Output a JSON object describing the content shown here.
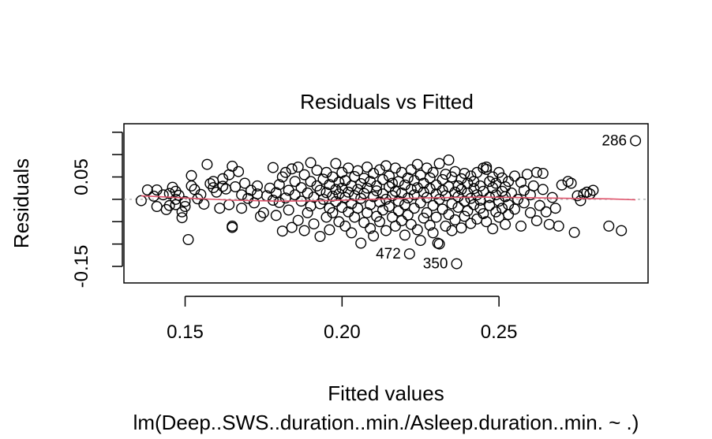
{
  "chart_data": {
    "type": "scatter",
    "title": "Residuals vs Fitted",
    "xlabel": "Fitted values",
    "ylabel": "Residuals",
    "caption": "lm(Deep..SWS..duration..min./Asleep.duration..min. ~ .)",
    "xlim": [
      0.1305,
      0.2975
    ],
    "ylim": [
      -0.187,
      0.169
    ],
    "x_ticks": [
      {
        "value": 0.15,
        "label": "0.15"
      },
      {
        "value": 0.2,
        "label": "0.20"
      },
      {
        "value": 0.25,
        "label": "0.25"
      }
    ],
    "y_ticks": [
      {
        "value": -0.15,
        "label": "-0.15"
      },
      {
        "value": -0.1,
        "label": ""
      },
      {
        "value": -0.05,
        "label": ""
      },
      {
        "value": 0.0,
        "label": ""
      },
      {
        "value": 0.05,
        "label": "0.05"
      },
      {
        "value": 0.1,
        "label": ""
      },
      {
        "value": 0.15,
        "label": ""
      }
    ],
    "reference_line": 0,
    "smooth_color": "#DF536B",
    "reference_color": "#aaaaaa",
    "labeled_points": [
      {
        "label": "286",
        "x": 0.2935,
        "y": 0.131
      },
      {
        "label": "472",
        "x": 0.2215,
        "y": -0.122
      },
      {
        "label": "350",
        "x": 0.2365,
        "y": -0.144
      }
    ],
    "smooth": [
      {
        "x": 0.136,
        "y": 0.008
      },
      {
        "x": 0.15,
        "y": 0.003
      },
      {
        "x": 0.165,
        "y": -0.002
      },
      {
        "x": 0.18,
        "y": -0.004
      },
      {
        "x": 0.195,
        "y": -0.003
      },
      {
        "x": 0.205,
        "y": -0.001
      },
      {
        "x": 0.215,
        "y": 0.001
      },
      {
        "x": 0.225,
        "y": 0.003
      },
      {
        "x": 0.235,
        "y": 0.004
      },
      {
        "x": 0.245,
        "y": 0.005
      },
      {
        "x": 0.255,
        "y": 0.004
      },
      {
        "x": 0.265,
        "y": 0.003
      },
      {
        "x": 0.275,
        "y": 0.002
      },
      {
        "x": 0.285,
        "y": 0.001
      },
      {
        "x": 0.2935,
        "y": -0.001
      }
    ],
    "points": [
      [
        0.136,
        -0.003
      ],
      [
        0.138,
        0.021
      ],
      [
        0.14,
        0.007
      ],
      [
        0.141,
        -0.016
      ],
      [
        0.141,
        0.021
      ],
      [
        0.143,
        0.01
      ],
      [
        0.144,
        -0.023
      ],
      [
        0.145,
        -0.014
      ],
      [
        0.145,
        0.013
      ],
      [
        0.146,
        0.027
      ],
      [
        0.147,
        0.0
      ],
      [
        0.147,
        -0.012
      ],
      [
        0.147,
        0.018
      ],
      [
        0.148,
        0.009
      ],
      [
        0.149,
        -0.028
      ],
      [
        0.149,
        -0.041
      ],
      [
        0.15,
        -0.005
      ],
      [
        0.15,
        -0.016
      ],
      [
        0.151,
        -0.09
      ],
      [
        0.152,
        0.053
      ],
      [
        0.152,
        0.03
      ],
      [
        0.153,
        0.022
      ],
      [
        0.154,
        0.001
      ],
      [
        0.155,
        0.011
      ],
      [
        0.156,
        -0.011
      ],
      [
        0.157,
        0.078
      ],
      [
        0.158,
        0.035
      ],
      [
        0.159,
        0.04
      ],
      [
        0.159,
        0.026
      ],
      [
        0.16,
        0.016
      ],
      [
        0.161,
        -0.02
      ],
      [
        0.162,
        0.046
      ],
      [
        0.162,
        0.029
      ],
      [
        0.163,
        0.023
      ],
      [
        0.164,
        -0.012
      ],
      [
        0.164,
        0.055
      ],
      [
        0.165,
        0.074
      ],
      [
        0.165,
        -0.06
      ],
      [
        0.165,
        -0.063
      ],
      [
        0.166,
        0.028
      ],
      [
        0.167,
        0.062
      ],
      [
        0.168,
        0.01
      ],
      [
        0.168,
        -0.02
      ],
      [
        0.169,
        0.036
      ],
      [
        0.17,
        0.002
      ],
      [
        0.171,
        0.02
      ],
      [
        0.172,
        -0.008
      ],
      [
        0.173,
        0.012
      ],
      [
        0.173,
        0.03
      ],
      [
        0.174,
        -0.038
      ],
      [
        0.175,
        -0.03
      ],
      [
        0.176,
        0.008
      ],
      [
        0.177,
        0.025
      ],
      [
        0.178,
        -0.002
      ],
      [
        0.178,
        0.071
      ],
      [
        0.179,
        0.015
      ],
      [
        0.179,
        -0.036
      ],
      [
        0.18,
        0.033
      ],
      [
        0.18,
        -0.007
      ],
      [
        0.181,
        0.05
      ],
      [
        0.181,
        -0.071
      ],
      [
        0.182,
        0.003
      ],
      [
        0.182,
        0.06
      ],
      [
        0.183,
        -0.024
      ],
      [
        0.183,
        0.02
      ],
      [
        0.184,
        0.068
      ],
      [
        0.184,
        -0.063
      ],
      [
        0.185,
        0.04
      ],
      [
        0.185,
        0.01
      ],
      [
        0.186,
        -0.047
      ],
      [
        0.186,
        0.072
      ],
      [
        0.187,
        -0.004
      ],
      [
        0.187,
        0.026
      ],
      [
        0.188,
        -0.07
      ],
      [
        0.188,
        0.055
      ],
      [
        0.189,
        0.014
      ],
      [
        0.189,
        -0.03
      ],
      [
        0.19,
        0.04
      ],
      [
        0.19,
        -0.015
      ],
      [
        0.19,
        0.082
      ],
      [
        0.191,
        0.005
      ],
      [
        0.191,
        -0.055
      ],
      [
        0.192,
        0.03
      ],
      [
        0.192,
        0.065
      ],
      [
        0.193,
        -0.01
      ],
      [
        0.193,
        0.02
      ],
      [
        0.193,
        -0.083
      ],
      [
        0.194,
        0.045
      ],
      [
        0.194,
        0.0
      ],
      [
        0.195,
        -0.04
      ],
      [
        0.195,
        0.06
      ],
      [
        0.195,
        0.015
      ],
      [
        0.196,
        -0.02
      ],
      [
        0.196,
        0.033
      ],
      [
        0.196,
        -0.068
      ],
      [
        0.197,
        0.007
      ],
      [
        0.197,
        0.05
      ],
      [
        0.197,
        -0.03
      ],
      [
        0.198,
        0.022
      ],
      [
        0.198,
        0.08
      ],
      [
        0.198,
        -0.005
      ],
      [
        0.199,
        0.038
      ],
      [
        0.199,
        -0.05
      ],
      [
        0.199,
        0.012
      ],
      [
        0.2,
        -0.018
      ],
      [
        0.2,
        0.06
      ],
      [
        0.2,
        0.025
      ],
      [
        0.201,
        -0.06
      ],
      [
        0.201,
        0.004
      ],
      [
        0.201,
        0.042
      ],
      [
        0.202,
        -0.028
      ],
      [
        0.202,
        0.016
      ],
      [
        0.202,
        0.07
      ],
      [
        0.203,
        -0.01
      ],
      [
        0.203,
        0.03
      ],
      [
        0.203,
        -0.075
      ],
      [
        0.204,
        0.051
      ],
      [
        0.204,
        -0.04
      ],
      [
        0.204,
        0.008
      ],
      [
        0.205,
        0.022
      ],
      [
        0.205,
        -0.02
      ],
      [
        0.205,
        0.064
      ],
      [
        0.206,
        -0.098
      ],
      [
        0.206,
        0.002
      ],
      [
        0.206,
        0.035
      ],
      [
        0.207,
        -0.052
      ],
      [
        0.207,
        0.013
      ],
      [
        0.207,
        0.047
      ],
      [
        0.208,
        -0.03
      ],
      [
        0.208,
        0.025
      ],
      [
        0.208,
        0.072
      ],
      [
        0.209,
        -0.012
      ],
      [
        0.209,
        0.04
      ],
      [
        0.209,
        -0.065
      ],
      [
        0.21,
        0.006
      ],
      [
        0.21,
        0.058
      ],
      [
        0.21,
        -0.082
      ],
      [
        0.211,
        0.019
      ],
      [
        0.211,
        -0.038
      ],
      [
        0.211,
        0.03
      ],
      [
        0.212,
        -0.006
      ],
      [
        0.212,
        0.066
      ],
      [
        0.212,
        -0.05
      ],
      [
        0.213,
        0.012
      ],
      [
        0.213,
        0.044
      ],
      [
        0.213,
        -0.024
      ],
      [
        0.214,
        0.0
      ],
      [
        0.214,
        0.075
      ],
      [
        0.214,
        -0.07
      ],
      [
        0.215,
        0.028
      ],
      [
        0.215,
        -0.016
      ],
      [
        0.215,
        0.052
      ],
      [
        0.216,
        -0.04
      ],
      [
        0.216,
        0.008
      ],
      [
        0.216,
        0.036
      ],
      [
        0.217,
        -0.06
      ],
      [
        0.217,
        0.018
      ],
      [
        0.217,
        0.07
      ],
      [
        0.218,
        -0.026
      ],
      [
        0.218,
        0.04
      ],
      [
        0.218,
        -0.004
      ],
      [
        0.219,
        0.06
      ],
      [
        0.219,
        -0.048
      ],
      [
        0.219,
        0.014
      ],
      [
        0.22,
        -0.012
      ],
      [
        0.22,
        0.032
      ],
      [
        0.22,
        -0.08
      ],
      [
        0.221,
        0.048
      ],
      [
        0.221,
        0.003
      ],
      [
        0.221,
        -0.035
      ],
      [
        0.222,
        0.022
      ],
      [
        0.222,
        0.066
      ],
      [
        0.222,
        -0.056
      ],
      [
        0.223,
        0.01
      ],
      [
        0.223,
        0.042
      ],
      [
        0.223,
        -0.02
      ],
      [
        0.224,
        0.078
      ],
      [
        0.224,
        -0.068
      ],
      [
        0.224,
        0.026
      ],
      [
        0.225,
        -0.008
      ],
      [
        0.225,
        0.054
      ],
      [
        0.225,
        -0.092
      ],
      [
        0.226,
        0.016
      ],
      [
        0.226,
        -0.042
      ],
      [
        0.226,
        0.036
      ],
      [
        0.227,
        0.004
      ],
      [
        0.227,
        0.07
      ],
      [
        0.227,
        -0.03
      ],
      [
        0.228,
        0.024
      ],
      [
        0.228,
        -0.058
      ],
      [
        0.228,
        0.048
      ],
      [
        0.229,
        -0.014
      ],
      [
        0.229,
        0.06
      ],
      [
        0.229,
        -0.075
      ],
      [
        0.23,
        0.012
      ],
      [
        0.23,
        0.032
      ],
      [
        0.23,
        -0.04
      ],
      [
        0.231,
        0.08
      ],
      [
        0.231,
        0.0
      ],
      [
        0.231,
        -0.1
      ],
      [
        0.232,
        0.044
      ],
      [
        0.232,
        -0.022
      ],
      [
        0.232,
        0.02
      ],
      [
        0.233,
        -0.06
      ],
      [
        0.233,
        0.056
      ],
      [
        0.233,
        0.008
      ],
      [
        0.234,
        0.088
      ],
      [
        0.234,
        -0.034
      ],
      [
        0.234,
        0.028
      ],
      [
        0.235,
        -0.01
      ],
      [
        0.235,
        0.05
      ],
      [
        0.235,
        -0.07
      ],
      [
        0.236,
        0.016
      ],
      [
        0.236,
        0.062
      ],
      [
        0.236,
        -0.046
      ],
      [
        0.237,
        0.03
      ],
      [
        0.237,
        -0.018
      ],
      [
        0.237,
        0.006
      ],
      [
        0.238,
        0.046
      ],
      [
        0.238,
        -0.064
      ],
      [
        0.238,
        0.022
      ],
      [
        0.239,
        -0.004
      ],
      [
        0.239,
        0.058
      ],
      [
        0.239,
        -0.038
      ],
      [
        0.24,
        0.014
      ],
      [
        0.24,
        0.036
      ],
      [
        0.24,
        -0.026
      ],
      [
        0.241,
        0.002
      ],
      [
        0.241,
        0.052
      ],
      [
        0.241,
        -0.054
      ],
      [
        0.242,
        0.024
      ],
      [
        0.242,
        -0.012
      ],
      [
        0.242,
        0.04
      ],
      [
        0.243,
        -0.044
      ],
      [
        0.243,
        0.01
      ],
      [
        0.243,
        0.06
      ],
      [
        0.244,
        -0.02
      ],
      [
        0.244,
        0.03
      ],
      [
        0.244,
        -0.002
      ],
      [
        0.245,
        0.07
      ],
      [
        0.245,
        -0.032
      ],
      [
        0.245,
        0.018
      ],
      [
        0.246,
        0.072
      ],
      [
        0.246,
        0.067
      ],
      [
        0.246,
        -0.05
      ],
      [
        0.247,
        0.04
      ],
      [
        0.247,
        0.004
      ],
      [
        0.247,
        -0.014
      ],
      [
        0.248,
        0.026
      ],
      [
        0.248,
        -0.066
      ],
      [
        0.248,
        0.05
      ],
      [
        0.249,
        0.01
      ],
      [
        0.249,
        -0.028
      ],
      [
        0.249,
        0.036
      ],
      [
        0.25,
        -0.004
      ],
      [
        0.25,
        0.06
      ],
      [
        0.25,
        -0.04
      ],
      [
        0.251,
        0.018
      ],
      [
        0.251,
        -0.02
      ],
      [
        0.251,
        0.048
      ],
      [
        0.252,
        -0.056
      ],
      [
        0.252,
        0.006
      ],
      [
        0.252,
        0.028
      ],
      [
        0.253,
        -0.012
      ],
      [
        0.253,
        0.04
      ],
      [
        0.253,
        -0.034
      ],
      [
        0.254,
        0.014
      ],
      [
        0.255,
        0.052
      ],
      [
        0.255,
        -0.022
      ],
      [
        0.256,
        0.0
      ],
      [
        0.257,
        0.038
      ],
      [
        0.257,
        -0.06
      ],
      [
        0.258,
        0.02
      ],
      [
        0.258,
        -0.008
      ],
      [
        0.259,
        0.056
      ],
      [
        0.26,
        -0.03
      ],
      [
        0.26,
        0.01
      ],
      [
        0.261,
        0.03
      ],
      [
        0.262,
        0.06
      ],
      [
        0.262,
        -0.048
      ],
      [
        0.263,
        -0.014
      ],
      [
        0.264,
        0.058
      ],
      [
        0.264,
        0.022
      ],
      [
        0.265,
        -0.028
      ],
      [
        0.266,
        -0.056
      ],
      [
        0.267,
        0.004
      ],
      [
        0.268,
        -0.02
      ],
      [
        0.269,
        -0.06
      ],
      [
        0.27,
        0.032
      ],
      [
        0.272,
        0.04
      ],
      [
        0.273,
        0.036
      ],
      [
        0.274,
        -0.074
      ],
      [
        0.275,
        0.008
      ],
      [
        0.276,
        -0.003
      ],
      [
        0.277,
        0.012
      ],
      [
        0.278,
        0.016
      ],
      [
        0.279,
        0.012
      ],
      [
        0.28,
        0.02
      ],
      [
        0.285,
        -0.06
      ],
      [
        0.289,
        -0.07
      ],
      [
        0.2935,
        0.131
      ],
      [
        0.2215,
        -0.122
      ],
      [
        0.2365,
        -0.144
      ],
      [
        0.2305,
        -0.098
      ]
    ]
  }
}
